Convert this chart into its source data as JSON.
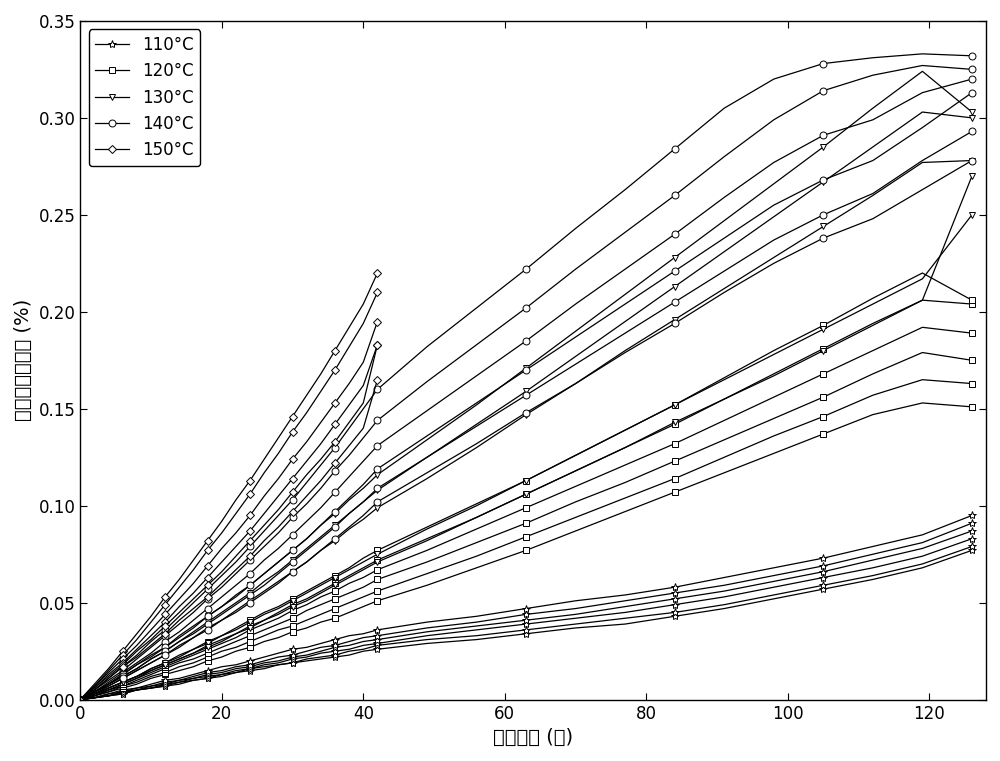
{
  "xlabel": "老化时间 (天)",
  "ylabel": "压缩永久变形率 (%)",
  "xlim": [
    0,
    128
  ],
  "ylim": [
    0,
    0.35
  ],
  "yticks": [
    0,
    0.05,
    0.1,
    0.15,
    0.2,
    0.25,
    0.3,
    0.35
  ],
  "xticks": [
    0,
    20,
    40,
    60,
    80,
    100,
    120
  ],
  "legend_labels": [
    "110°C",
    "120°C",
    "130°C",
    "140°C",
    "150°C"
  ],
  "color": "black",
  "linewidth": 0.9,
  "markersize": 5,
  "x_full": [
    0,
    2,
    4,
    6,
    8,
    10,
    12,
    14,
    16,
    18,
    20,
    22,
    24,
    26,
    28,
    30,
    32,
    34,
    36,
    38,
    40,
    42,
    49,
    56,
    63,
    70,
    77,
    84,
    91,
    98,
    105,
    112,
    119,
    126
  ],
  "x_150": [
    0,
    2,
    4,
    6,
    8,
    10,
    12,
    14,
    16,
    18,
    20,
    22,
    24,
    26,
    28,
    30,
    32,
    34,
    36,
    38,
    40,
    42
  ],
  "series_110": [
    [
      0,
      0.001,
      0.002,
      0.003,
      0.005,
      0.006,
      0.007,
      0.008,
      0.01,
      0.011,
      0.012,
      0.014,
      0.015,
      0.016,
      0.018,
      0.019,
      0.02,
      0.021,
      0.022,
      0.023,
      0.025,
      0.026,
      0.029,
      0.031,
      0.034,
      0.037,
      0.039,
      0.043,
      0.047,
      0.052,
      0.057,
      0.062,
      0.068,
      0.077
    ],
    [
      0,
      0.001,
      0.002,
      0.003,
      0.005,
      0.006,
      0.007,
      0.009,
      0.01,
      0.011,
      0.013,
      0.014,
      0.016,
      0.017,
      0.018,
      0.019,
      0.021,
      0.022,
      0.023,
      0.025,
      0.026,
      0.028,
      0.031,
      0.033,
      0.036,
      0.039,
      0.042,
      0.045,
      0.049,
      0.054,
      0.059,
      0.064,
      0.07,
      0.079
    ],
    [
      0,
      0.001,
      0.002,
      0.004,
      0.005,
      0.006,
      0.008,
      0.009,
      0.011,
      0.012,
      0.013,
      0.015,
      0.016,
      0.018,
      0.019,
      0.021,
      0.022,
      0.024,
      0.025,
      0.026,
      0.028,
      0.029,
      0.033,
      0.036,
      0.039,
      0.042,
      0.045,
      0.049,
      0.053,
      0.058,
      0.063,
      0.068,
      0.074,
      0.083
    ],
    [
      0,
      0.001,
      0.002,
      0.004,
      0.005,
      0.007,
      0.008,
      0.01,
      0.011,
      0.013,
      0.014,
      0.016,
      0.017,
      0.019,
      0.02,
      0.022,
      0.023,
      0.025,
      0.027,
      0.028,
      0.03,
      0.031,
      0.035,
      0.038,
      0.041,
      0.044,
      0.048,
      0.052,
      0.056,
      0.061,
      0.066,
      0.072,
      0.078,
      0.087
    ],
    [
      0,
      0.001,
      0.003,
      0.004,
      0.006,
      0.007,
      0.009,
      0.01,
      0.012,
      0.014,
      0.015,
      0.017,
      0.018,
      0.02,
      0.022,
      0.023,
      0.025,
      0.027,
      0.028,
      0.03,
      0.032,
      0.033,
      0.037,
      0.04,
      0.044,
      0.047,
      0.051,
      0.055,
      0.059,
      0.064,
      0.069,
      0.075,
      0.081,
      0.091
    ],
    [
      0,
      0.001,
      0.003,
      0.005,
      0.006,
      0.008,
      0.01,
      0.011,
      0.013,
      0.015,
      0.017,
      0.018,
      0.02,
      0.022,
      0.024,
      0.026,
      0.027,
      0.029,
      0.031,
      0.033,
      0.034,
      0.036,
      0.04,
      0.043,
      0.047,
      0.051,
      0.054,
      0.058,
      0.063,
      0.068,
      0.073,
      0.079,
      0.085,
      0.095
    ]
  ],
  "series_120": [
    [
      0,
      0.002,
      0.004,
      0.006,
      0.008,
      0.011,
      0.013,
      0.015,
      0.017,
      0.02,
      0.022,
      0.025,
      0.027,
      0.03,
      0.032,
      0.035,
      0.037,
      0.04,
      0.042,
      0.045,
      0.048,
      0.051,
      0.059,
      0.068,
      0.077,
      0.087,
      0.097,
      0.107,
      0.117,
      0.127,
      0.137,
      0.147,
      0.153,
      0.151
    ],
    [
      0,
      0.002,
      0.004,
      0.007,
      0.009,
      0.012,
      0.014,
      0.017,
      0.019,
      0.022,
      0.025,
      0.027,
      0.03,
      0.033,
      0.036,
      0.038,
      0.041,
      0.044,
      0.047,
      0.05,
      0.053,
      0.056,
      0.065,
      0.074,
      0.084,
      0.094,
      0.104,
      0.114,
      0.125,
      0.136,
      0.146,
      0.157,
      0.165,
      0.163
    ],
    [
      0,
      0.002,
      0.005,
      0.007,
      0.01,
      0.013,
      0.016,
      0.019,
      0.021,
      0.024,
      0.027,
      0.03,
      0.033,
      0.036,
      0.039,
      0.042,
      0.046,
      0.049,
      0.052,
      0.055,
      0.058,
      0.062,
      0.071,
      0.081,
      0.091,
      0.102,
      0.112,
      0.123,
      0.134,
      0.145,
      0.156,
      0.168,
      0.179,
      0.175
    ],
    [
      0,
      0.002,
      0.005,
      0.008,
      0.011,
      0.014,
      0.017,
      0.02,
      0.023,
      0.026,
      0.029,
      0.032,
      0.036,
      0.039,
      0.042,
      0.046,
      0.049,
      0.053,
      0.056,
      0.06,
      0.063,
      0.067,
      0.077,
      0.088,
      0.099,
      0.11,
      0.121,
      0.132,
      0.144,
      0.156,
      0.168,
      0.18,
      0.192,
      0.189
    ],
    [
      0,
      0.003,
      0.005,
      0.008,
      0.011,
      0.015,
      0.018,
      0.021,
      0.024,
      0.028,
      0.031,
      0.034,
      0.038,
      0.041,
      0.045,
      0.049,
      0.052,
      0.056,
      0.06,
      0.064,
      0.068,
      0.072,
      0.083,
      0.094,
      0.106,
      0.118,
      0.13,
      0.142,
      0.155,
      0.168,
      0.181,
      0.194,
      0.206,
      0.204
    ],
    [
      0,
      0.003,
      0.006,
      0.009,
      0.012,
      0.016,
      0.019,
      0.023,
      0.026,
      0.03,
      0.033,
      0.037,
      0.041,
      0.045,
      0.048,
      0.052,
      0.056,
      0.06,
      0.064,
      0.068,
      0.073,
      0.077,
      0.089,
      0.101,
      0.113,
      0.126,
      0.139,
      0.152,
      0.166,
      0.18,
      0.193,
      0.207,
      0.22,
      0.206
    ]
  ],
  "series_130": [
    [
      0,
      0.003,
      0.007,
      0.011,
      0.015,
      0.019,
      0.023,
      0.028,
      0.032,
      0.037,
      0.041,
      0.046,
      0.051,
      0.056,
      0.061,
      0.066,
      0.071,
      0.077,
      0.082,
      0.088,
      0.093,
      0.099,
      0.114,
      0.13,
      0.147,
      0.163,
      0.18,
      0.196,
      0.212,
      0.228,
      0.244,
      0.26,
      0.277,
      0.278
    ],
    [
      0,
      0.004,
      0.008,
      0.012,
      0.016,
      0.021,
      0.025,
      0.03,
      0.035,
      0.04,
      0.045,
      0.05,
      0.055,
      0.061,
      0.066,
      0.072,
      0.078,
      0.084,
      0.09,
      0.096,
      0.102,
      0.108,
      0.125,
      0.142,
      0.159,
      0.177,
      0.195,
      0.213,
      0.231,
      0.249,
      0.267,
      0.285,
      0.303,
      0.3
    ],
    [
      0,
      0.004,
      0.008,
      0.013,
      0.018,
      0.023,
      0.027,
      0.033,
      0.038,
      0.043,
      0.048,
      0.054,
      0.059,
      0.065,
      0.071,
      0.077,
      0.083,
      0.09,
      0.096,
      0.103,
      0.109,
      0.116,
      0.134,
      0.152,
      0.171,
      0.19,
      0.209,
      0.228,
      0.247,
      0.266,
      0.285,
      0.305,
      0.324,
      0.303
    ],
    [
      0,
      0.003,
      0.006,
      0.009,
      0.012,
      0.016,
      0.019,
      0.022,
      0.026,
      0.029,
      0.033,
      0.036,
      0.04,
      0.044,
      0.047,
      0.051,
      0.055,
      0.059,
      0.063,
      0.067,
      0.071,
      0.075,
      0.088,
      0.1,
      0.113,
      0.126,
      0.139,
      0.152,
      0.165,
      0.178,
      0.191,
      0.204,
      0.217,
      0.25
    ],
    [
      0,
      0.003,
      0.006,
      0.009,
      0.012,
      0.015,
      0.018,
      0.021,
      0.024,
      0.027,
      0.03,
      0.034,
      0.037,
      0.041,
      0.044,
      0.048,
      0.051,
      0.055,
      0.059,
      0.063,
      0.067,
      0.071,
      0.082,
      0.094,
      0.106,
      0.118,
      0.13,
      0.143,
      0.155,
      0.167,
      0.18,
      0.193,
      0.206,
      0.27
    ]
  ],
  "series_140": [
    [
      0,
      0.005,
      0.011,
      0.017,
      0.023,
      0.03,
      0.036,
      0.043,
      0.05,
      0.057,
      0.064,
      0.071,
      0.079,
      0.087,
      0.095,
      0.103,
      0.112,
      0.121,
      0.13,
      0.14,
      0.15,
      0.16,
      0.182,
      0.202,
      0.222,
      0.243,
      0.263,
      0.284,
      0.305,
      0.32,
      0.328,
      0.331,
      0.333,
      0.332
    ],
    [
      0,
      0.005,
      0.01,
      0.015,
      0.021,
      0.027,
      0.033,
      0.039,
      0.045,
      0.052,
      0.058,
      0.065,
      0.072,
      0.079,
      0.086,
      0.094,
      0.101,
      0.109,
      0.118,
      0.126,
      0.135,
      0.144,
      0.164,
      0.183,
      0.202,
      0.222,
      0.241,
      0.26,
      0.28,
      0.299,
      0.314,
      0.322,
      0.327,
      0.325
    ],
    [
      0,
      0.004,
      0.009,
      0.014,
      0.019,
      0.024,
      0.03,
      0.035,
      0.041,
      0.047,
      0.053,
      0.059,
      0.065,
      0.072,
      0.078,
      0.085,
      0.092,
      0.099,
      0.107,
      0.115,
      0.123,
      0.131,
      0.149,
      0.167,
      0.185,
      0.204,
      0.222,
      0.24,
      0.259,
      0.277,
      0.291,
      0.299,
      0.313,
      0.32
    ],
    [
      0,
      0.004,
      0.008,
      0.013,
      0.018,
      0.022,
      0.027,
      0.032,
      0.037,
      0.043,
      0.048,
      0.053,
      0.059,
      0.065,
      0.071,
      0.077,
      0.083,
      0.09,
      0.097,
      0.104,
      0.111,
      0.119,
      0.136,
      0.153,
      0.17,
      0.187,
      0.204,
      0.221,
      0.238,
      0.255,
      0.268,
      0.278,
      0.295,
      0.313
    ],
    [
      0,
      0.004,
      0.008,
      0.012,
      0.016,
      0.021,
      0.025,
      0.03,
      0.034,
      0.039,
      0.044,
      0.049,
      0.054,
      0.059,
      0.065,
      0.071,
      0.077,
      0.083,
      0.089,
      0.096,
      0.102,
      0.109,
      0.125,
      0.141,
      0.157,
      0.173,
      0.189,
      0.205,
      0.221,
      0.237,
      0.25,
      0.261,
      0.278,
      0.293
    ],
    [
      0,
      0.004,
      0.007,
      0.011,
      0.015,
      0.019,
      0.023,
      0.027,
      0.032,
      0.036,
      0.041,
      0.045,
      0.05,
      0.055,
      0.06,
      0.066,
      0.071,
      0.077,
      0.083,
      0.089,
      0.095,
      0.102,
      0.117,
      0.132,
      0.148,
      0.163,
      0.179,
      0.194,
      0.21,
      0.225,
      0.238,
      0.248,
      0.263,
      0.278
    ]
  ],
  "series_150": [
    [
      0,
      0.008,
      0.016,
      0.025,
      0.034,
      0.043,
      0.053,
      0.062,
      0.072,
      0.082,
      0.092,
      0.103,
      0.113,
      0.124,
      0.135,
      0.146,
      0.157,
      0.168,
      0.18,
      0.192,
      0.204,
      0.22
    ],
    [
      0,
      0.007,
      0.015,
      0.023,
      0.031,
      0.04,
      0.049,
      0.058,
      0.067,
      0.077,
      0.086,
      0.096,
      0.106,
      0.117,
      0.127,
      0.138,
      0.148,
      0.159,
      0.17,
      0.182,
      0.194,
      0.21
    ],
    [
      0,
      0.007,
      0.014,
      0.021,
      0.028,
      0.036,
      0.044,
      0.052,
      0.06,
      0.069,
      0.078,
      0.086,
      0.095,
      0.105,
      0.114,
      0.124,
      0.133,
      0.143,
      0.153,
      0.163,
      0.174,
      0.195
    ],
    [
      0,
      0.006,
      0.013,
      0.019,
      0.026,
      0.033,
      0.04,
      0.048,
      0.055,
      0.063,
      0.071,
      0.079,
      0.087,
      0.096,
      0.105,
      0.114,
      0.123,
      0.132,
      0.142,
      0.152,
      0.162,
      0.183
    ],
    [
      0,
      0.006,
      0.012,
      0.018,
      0.025,
      0.031,
      0.038,
      0.045,
      0.052,
      0.059,
      0.066,
      0.074,
      0.082,
      0.09,
      0.098,
      0.107,
      0.116,
      0.124,
      0.133,
      0.143,
      0.153,
      0.183
    ],
    [
      0,
      0.005,
      0.011,
      0.017,
      0.022,
      0.028,
      0.034,
      0.041,
      0.047,
      0.053,
      0.06,
      0.067,
      0.074,
      0.082,
      0.089,
      0.097,
      0.105,
      0.113,
      0.122,
      0.131,
      0.14,
      0.165
    ]
  ]
}
